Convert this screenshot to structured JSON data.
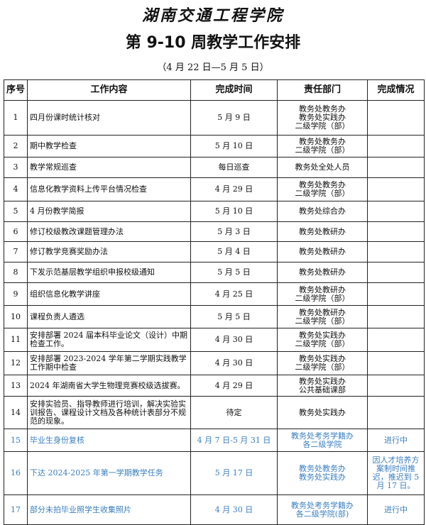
{
  "header": {
    "school": "湖南交通工程学院",
    "title": "第 9-10 周教学工作安排",
    "subtitle": "（4 月 22 日—5 月 5 日）"
  },
  "table": {
    "columns": [
      "序号",
      "工作内容",
      "完成时间",
      "责任部门",
      "完成情况"
    ],
    "rows": [
      {
        "no": 1,
        "content": "四月份课时统计核对",
        "time": "5 月 9 日",
        "dept": [
          "教务处教务办",
          "教务处实践办",
          "二级学院（部）"
        ]
      },
      {
        "no": 2,
        "content": "期中教学检查",
        "time": "5 月 10 日",
        "dept": [
          "教务处教务办",
          "二级学院（部）"
        ]
      },
      {
        "no": 3,
        "content": "教学常规巡查",
        "time": "每日巡查",
        "dept": [
          "教务处全处人员"
        ]
      },
      {
        "no": 4,
        "content": "信息化教学资料上传平台情况检查",
        "time": "4 月 29 日",
        "dept": [
          "教务处教务办",
          "二级学院（部）"
        ]
      },
      {
        "no": 5,
        "content": "4 月份教学简报",
        "time": "5 月 10 日",
        "dept": [
          "教务处综合办"
        ]
      },
      {
        "no": 6,
        "content": "修订校级教改课题管理办法",
        "time": "5 月 3 日",
        "dept": [
          "教务处教研办"
        ]
      },
      {
        "no": 7,
        "content": "修订教学竞赛奖励办法",
        "time": "5 月 4 日",
        "dept": [
          "教务处教研办"
        ]
      },
      {
        "no": 8,
        "content": "下发示范基层教学组织申报校级通知",
        "time": "5 月 5 日",
        "dept": [
          "教务处教研办"
        ]
      },
      {
        "no": 9,
        "content": "组织信息化教学讲座",
        "time": "4 月 25 日",
        "dept": [
          "教务处教研办",
          "二级学院（部）"
        ]
      },
      {
        "no": 10,
        "content": "课程负责人遴选",
        "time": "5 月 5 日",
        "dept": [
          "教务处教研办",
          "二级学院（部）"
        ]
      },
      {
        "no": 11,
        "content": "安排部署 2024 届本科毕业论文（设计）中期检查工作。",
        "time": "4 月 30 日",
        "dept": [
          "教务处实践办",
          "二级学院（部）"
        ]
      },
      {
        "no": 12,
        "content": "安排部署 2023-2024 学年第二学期实践教学工作期中检查",
        "time": "4 月 30 日",
        "dept": [
          "教务处实践办",
          "二级学院（部）"
        ]
      },
      {
        "no": 13,
        "content": "2024 年湖南省大学生物理竞赛校级选拔赛。",
        "time": "4 月 29 日",
        "dept": [
          "教务处实践办",
          "公共基础课部"
        ]
      },
      {
        "no": 14,
        "content": "安排实验员、指导教师进行培训，解决实验实训报告、课程设计文档及各种统计表部分不规范的现象。",
        "time": "待定",
        "dept": [
          "教务处实践办"
        ]
      },
      {
        "no": 15,
        "content": "毕业生身份复核",
        "time": "4 月 7 日-5 月 31 日",
        "dept": [
          "教务处考务学籍办",
          "各二级学院"
        ],
        "status": "进行中",
        "color": "#3a7fc1"
      },
      {
        "no": 16,
        "content": "下达 2024-2025 年第一学期教学任务",
        "time": "5 月 17 日",
        "dept": [
          "教务处教务办",
          "教务处实践办"
        ],
        "status": "因人才培养方案制时间推迟，推迟到 5 月 17 日。",
        "color": "#3a7fc1"
      },
      {
        "no": 17,
        "content": "部分未拍毕业照学生收集照片",
        "time": "4 月 30 日",
        "dept": [
          "教务处考务学籍办",
          "各二级学院(部)"
        ],
        "status": "进行中",
        "color": "#3a7fc1"
      }
    ]
  }
}
